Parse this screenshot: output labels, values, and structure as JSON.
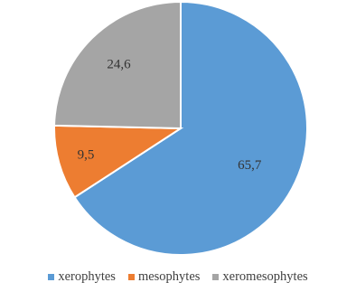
{
  "chart_data": {
    "type": "pie",
    "categories": [
      "xerophytes",
      "mesophytes",
      "xeromesophytes"
    ],
    "values": [
      65.7,
      9.5,
      24.6
    ],
    "labels": [
      "65,7",
      "9,5",
      "24,6"
    ],
    "colors": [
      "#5b9bd5",
      "#ed7d31",
      "#a5a5a5"
    ],
    "start": "12 o'clock, clockwise",
    "legend_position": "bottom",
    "title": ""
  }
}
